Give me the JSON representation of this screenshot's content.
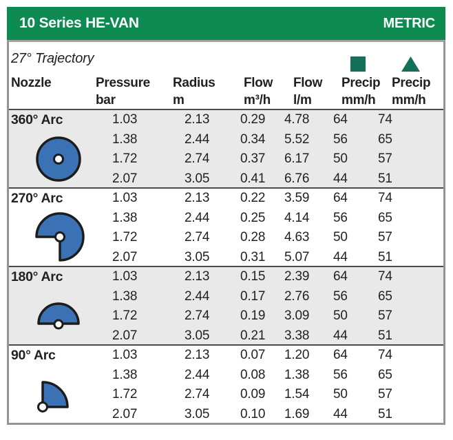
{
  "header": {
    "title": "10 Series HE-VAN",
    "units_label": "METRIC"
  },
  "trajectory_label": "27° Trajectory",
  "icons": {
    "precip_square": "filled-square",
    "precip_triangle": "filled-triangle",
    "arc_icons": [
      "full-circle-sprinkler-arc",
      "three-quarter-sprinkler-arc",
      "half-circle-sprinkler-arc",
      "quarter-circle-sprinkler-arc"
    ]
  },
  "colors": {
    "header_green": "#0d8a50",
    "legend_green": "#15705a",
    "nozzle_blue": "#3b72b6",
    "row_band_gray": "#e9e9e9",
    "text": "#231f20"
  },
  "columns": [
    {
      "label": "Nozzle",
      "unit": ""
    },
    {
      "label": "Pressure",
      "unit": "bar"
    },
    {
      "label": "Radius",
      "unit": "m"
    },
    {
      "label": "Flow",
      "unit": "m³/h"
    },
    {
      "label": "Flow",
      "unit": "l/m"
    },
    {
      "label": "Precip",
      "unit": "mm/h"
    },
    {
      "label": "Precip",
      "unit": "mm/h"
    }
  ],
  "sections": [
    {
      "label": "360° Arc",
      "rows": [
        [
          "1.03",
          "2.13",
          "0.29",
          "4.78",
          "64",
          "74"
        ],
        [
          "1.38",
          "2.44",
          "0.34",
          "5.52",
          "56",
          "65"
        ],
        [
          "1.72",
          "2.74",
          "0.37",
          "6.17",
          "50",
          "57"
        ],
        [
          "2.07",
          "3.05",
          "0.41",
          "6.76",
          "44",
          "51"
        ]
      ]
    },
    {
      "label": "270° Arc",
      "rows": [
        [
          "1.03",
          "2.13",
          "0.22",
          "3.59",
          "64",
          "74"
        ],
        [
          "1.38",
          "2.44",
          "0.25",
          "4.14",
          "56",
          "65"
        ],
        [
          "1.72",
          "2.74",
          "0.28",
          "4.63",
          "50",
          "57"
        ],
        [
          "2.07",
          "3.05",
          "0.31",
          "5.07",
          "44",
          "51"
        ]
      ]
    },
    {
      "label": "180° Arc",
      "rows": [
        [
          "1.03",
          "2.13",
          "0.15",
          "2.39",
          "64",
          "74"
        ],
        [
          "1.38",
          "2.44",
          "0.17",
          "2.76",
          "56",
          "65"
        ],
        [
          "1.72",
          "2.74",
          "0.19",
          "3.09",
          "50",
          "57"
        ],
        [
          "2.07",
          "3.05",
          "0.21",
          "3.38",
          "44",
          "51"
        ]
      ]
    },
    {
      "label": "90° Arc",
      "rows": [
        [
          "1.03",
          "2.13",
          "0.07",
          "1.20",
          "64",
          "74"
        ],
        [
          "1.38",
          "2.44",
          "0.08",
          "1.38",
          "56",
          "65"
        ],
        [
          "1.72",
          "2.74",
          "0.09",
          "1.54",
          "50",
          "57"
        ],
        [
          "2.07",
          "3.05",
          "0.10",
          "1.69",
          "44",
          "51"
        ]
      ]
    }
  ]
}
